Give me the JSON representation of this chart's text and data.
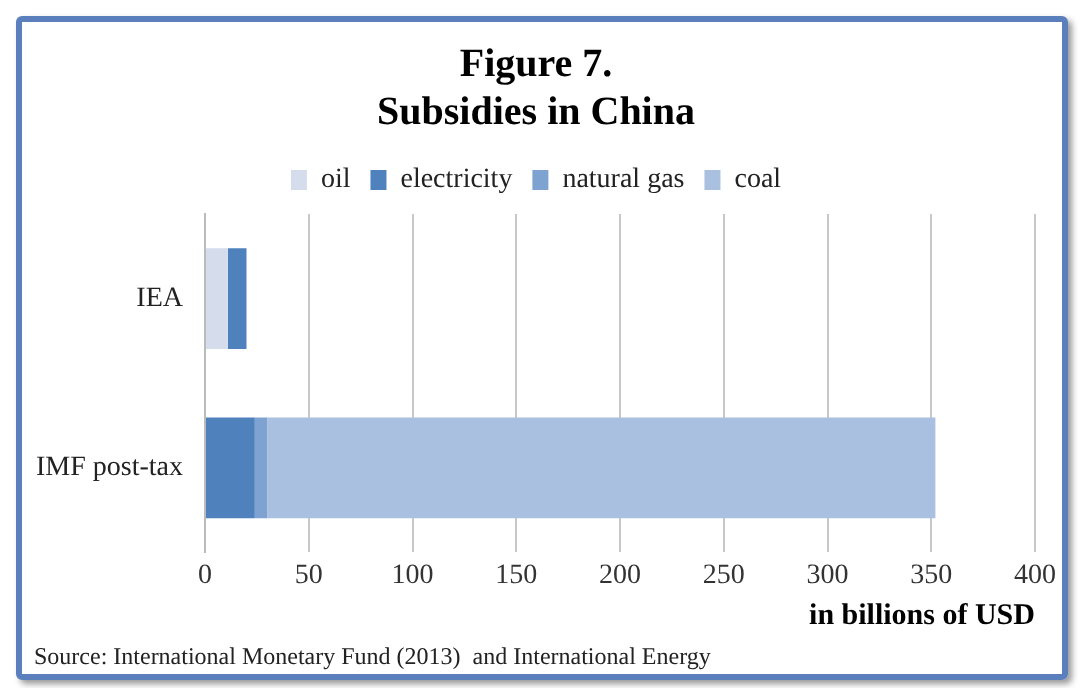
{
  "chart_data": {
    "type": "bar",
    "orientation": "horizontal",
    "stacked": true,
    "title": "Figure 7.",
    "subtitle": "Subsidies in China",
    "categories": [
      "IEA",
      "IMF post-tax"
    ],
    "series": [
      {
        "name": "oil",
        "color": "#d5dceb",
        "values": [
          11,
          0
        ]
      },
      {
        "name": "electricity",
        "color": "#4f81bd",
        "values": [
          9,
          24
        ]
      },
      {
        "name": "natural gas",
        "color": "#7fa3d1",
        "values": [
          0,
          6
        ]
      },
      {
        "name": "coal",
        "color": "#a9c0e0",
        "values": [
          0,
          322
        ]
      }
    ],
    "xlim": [
      0,
      400
    ],
    "xticks": [
      0,
      50,
      100,
      150,
      200,
      250,
      300,
      350,
      400
    ],
    "xlabel": "in billions of USD",
    "grid": "x",
    "legend": "top",
    "annotations": [
      "Source: International Monetary Fund (2013)  and International Energy"
    ]
  }
}
